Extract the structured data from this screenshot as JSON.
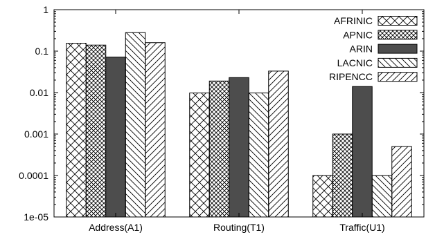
{
  "chart_data": {
    "type": "bar",
    "title": "",
    "xlabel": "",
    "ylabel": "",
    "yscale": "log",
    "ylim": [
      1e-05,
      1
    ],
    "grid": false,
    "legend_position": "top-right",
    "categories": [
      "Address(A1)",
      "Routing(T1)",
      "Traffic(U1)"
    ],
    "yticks": [
      {
        "value": 1,
        "label": "1"
      },
      {
        "value": 0.1,
        "label": "0.1"
      },
      {
        "value": 0.01,
        "label": "0.01"
      },
      {
        "value": 0.001,
        "label": "0.001"
      },
      {
        "value": 0.0001,
        "label": "0.0001"
      },
      {
        "value": 1e-05,
        "label": "1e-05"
      }
    ],
    "series": [
      {
        "name": "AFRINIC",
        "pattern": "cross-hatch",
        "color": "#000000",
        "values": [
          0.155,
          0.0098,
          0.0001
        ]
      },
      {
        "name": "APNIC",
        "pattern": "dense-cross-hatch",
        "color": "#000000",
        "values": [
          0.14,
          0.019,
          0.001
        ]
      },
      {
        "name": "ARIN",
        "pattern": "solid",
        "color": "#4d4d4d",
        "values": [
          0.072,
          0.023,
          0.014
        ]
      },
      {
        "name": "LACNIC",
        "pattern": "back-diagonal",
        "color": "#000000",
        "values": [
          0.28,
          0.0098,
          0.0001
        ]
      },
      {
        "name": "RIPENCC",
        "pattern": "forward-diagonal",
        "color": "#000000",
        "values": [
          0.16,
          0.033,
          0.0005
        ]
      }
    ]
  }
}
